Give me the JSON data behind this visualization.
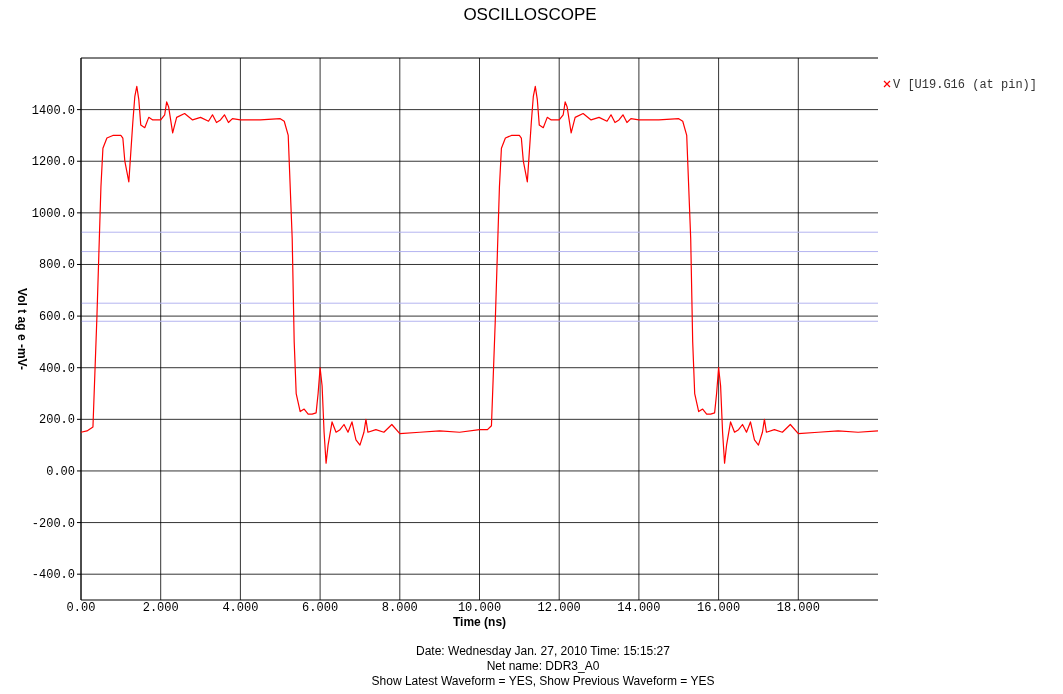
{
  "chart_data": {
    "type": "line",
    "title": "OSCILLOSCOPE",
    "xlabel": "Time  (ns)",
    "ylabel": "Vol t ag e -mV-",
    "annotations": [
      "Date: Wednesday Jan. 27, 2010   Time: 15:15:27",
      "Net name: DDR3_A0",
      "Show Latest Waveform = YES,   Show Previous Waveform = YES"
    ],
    "xlim": [
      0,
      20
    ],
    "xticks": [
      {
        "value": 0,
        "label": "0.00"
      },
      {
        "value": 2,
        "label": "2.000"
      },
      {
        "value": 4,
        "label": "4.000"
      },
      {
        "value": 6,
        "label": "6.000"
      },
      {
        "value": 8,
        "label": "8.000"
      },
      {
        "value": 10,
        "label": "10.000"
      },
      {
        "value": 12,
        "label": "12.000"
      },
      {
        "value": 14,
        "label": "14.000"
      },
      {
        "value": 16,
        "label": "16.000"
      },
      {
        "value": 18,
        "label": "18.000"
      }
    ],
    "ylim": [
      -500,
      1600
    ],
    "yticks": [
      {
        "value": -400,
        "label": "-400.0"
      },
      {
        "value": -200,
        "label": "-200.0"
      },
      {
        "value": 0,
        "label": "0.00"
      },
      {
        "value": 200,
        "label": "200.0"
      },
      {
        "value": 400,
        "label": "400.0"
      },
      {
        "value": 600,
        "label": "600.0"
      },
      {
        "value": 800,
        "label": "800.0"
      },
      {
        "value": 1000,
        "label": "1000.0"
      },
      {
        "value": 1200,
        "label": "1200.0"
      },
      {
        "value": 1400,
        "label": "1400.0"
      }
    ],
    "grid": true,
    "legend": "top right",
    "line_style": "solid",
    "ref_lines": [
      {
        "axis": "y",
        "value": 925,
        "color": "#b4b4f0"
      },
      {
        "axis": "y",
        "value": 850,
        "color": "#b4b4f0"
      },
      {
        "axis": "y",
        "value": 650,
        "color": "#b4b4f0"
      },
      {
        "axis": "y",
        "value": 580,
        "color": "#b4b4f0"
      }
    ],
    "series": [
      {
        "name": "V [U19.G16 (at pin)]",
        "color": "#ff0000",
        "x": [
          0,
          0.15,
          0.3,
          0.4,
          0.5,
          0.55,
          0.65,
          0.8,
          1.0,
          1.05,
          1.1,
          1.2,
          1.3,
          1.35,
          1.4,
          1.45,
          1.5,
          1.6,
          1.7,
          1.8,
          2.0,
          2.1,
          2.15,
          2.2,
          2.3,
          2.4,
          2.6,
          2.8,
          3.0,
          3.2,
          3.3,
          3.4,
          3.5,
          3.6,
          3.7,
          3.8,
          4.0,
          4.5,
          5.0,
          5.1,
          5.2,
          5.3,
          5.35,
          5.4,
          5.5,
          5.6,
          5.7,
          5.8,
          5.9,
          5.95,
          6.0,
          6.05,
          6.1,
          6.15,
          6.2,
          6.3,
          6.4,
          6.5,
          6.6,
          6.7,
          6.8,
          6.9,
          7.0,
          7.1,
          7.15,
          7.2,
          7.4,
          7.6,
          7.8,
          8.0,
          8.5,
          9.0,
          9.5,
          10.0,
          10.2,
          10.3,
          10.4,
          10.5,
          10.55,
          10.65,
          10.8,
          11.0,
          11.05,
          11.1,
          11.2,
          11.3,
          11.35,
          11.4,
          11.45,
          11.5,
          11.6,
          11.7,
          11.8,
          12.0,
          12.1,
          12.15,
          12.2,
          12.3,
          12.4,
          12.6,
          12.8,
          13.0,
          13.2,
          13.3,
          13.4,
          13.5,
          13.6,
          13.7,
          13.8,
          14.0,
          14.5,
          15.0,
          15.1,
          15.2,
          15.3,
          15.35,
          15.4,
          15.5,
          15.6,
          15.7,
          15.8,
          15.9,
          15.95,
          16.0,
          16.05,
          16.1,
          16.15,
          16.2,
          16.3,
          16.4,
          16.5,
          16.6,
          16.7,
          16.8,
          16.9,
          17.0,
          17.1,
          17.15,
          17.2,
          17.4,
          17.6,
          17.8,
          18.0,
          18.5,
          19.0,
          19.5,
          20.0
        ],
        "values": [
          150,
          155,
          170,
          600,
          1100,
          1250,
          1290,
          1300,
          1300,
          1290,
          1200,
          1120,
          1350,
          1450,
          1490,
          1440,
          1340,
          1330,
          1370,
          1360,
          1360,
          1380,
          1430,
          1410,
          1310,
          1370,
          1385,
          1360,
          1370,
          1355,
          1380,
          1350,
          1360,
          1380,
          1350,
          1365,
          1360,
          1360,
          1365,
          1355,
          1300,
          900,
          500,
          300,
          230,
          240,
          220,
          220,
          225,
          300,
          400,
          330,
          150,
          30,
          100,
          190,
          150,
          160,
          180,
          150,
          190,
          120,
          100,
          150,
          200,
          150,
          160,
          150,
          180,
          145,
          150,
          155,
          150,
          160,
          160,
          175,
          600,
          1100,
          1250,
          1290,
          1300,
          1300,
          1290,
          1200,
          1120,
          1350,
          1450,
          1490,
          1440,
          1340,
          1330,
          1370,
          1360,
          1360,
          1380,
          1430,
          1410,
          1310,
          1370,
          1385,
          1360,
          1370,
          1355,
          1380,
          1350,
          1360,
          1380,
          1350,
          1365,
          1360,
          1360,
          1365,
          1355,
          1300,
          900,
          500,
          300,
          230,
          240,
          220,
          220,
          225,
          300,
          400,
          330,
          150,
          30,
          100,
          190,
          150,
          160,
          180,
          150,
          190,
          120,
          100,
          150,
          200,
          150,
          160,
          150,
          180,
          145,
          150,
          155,
          150,
          155
        ]
      }
    ]
  }
}
